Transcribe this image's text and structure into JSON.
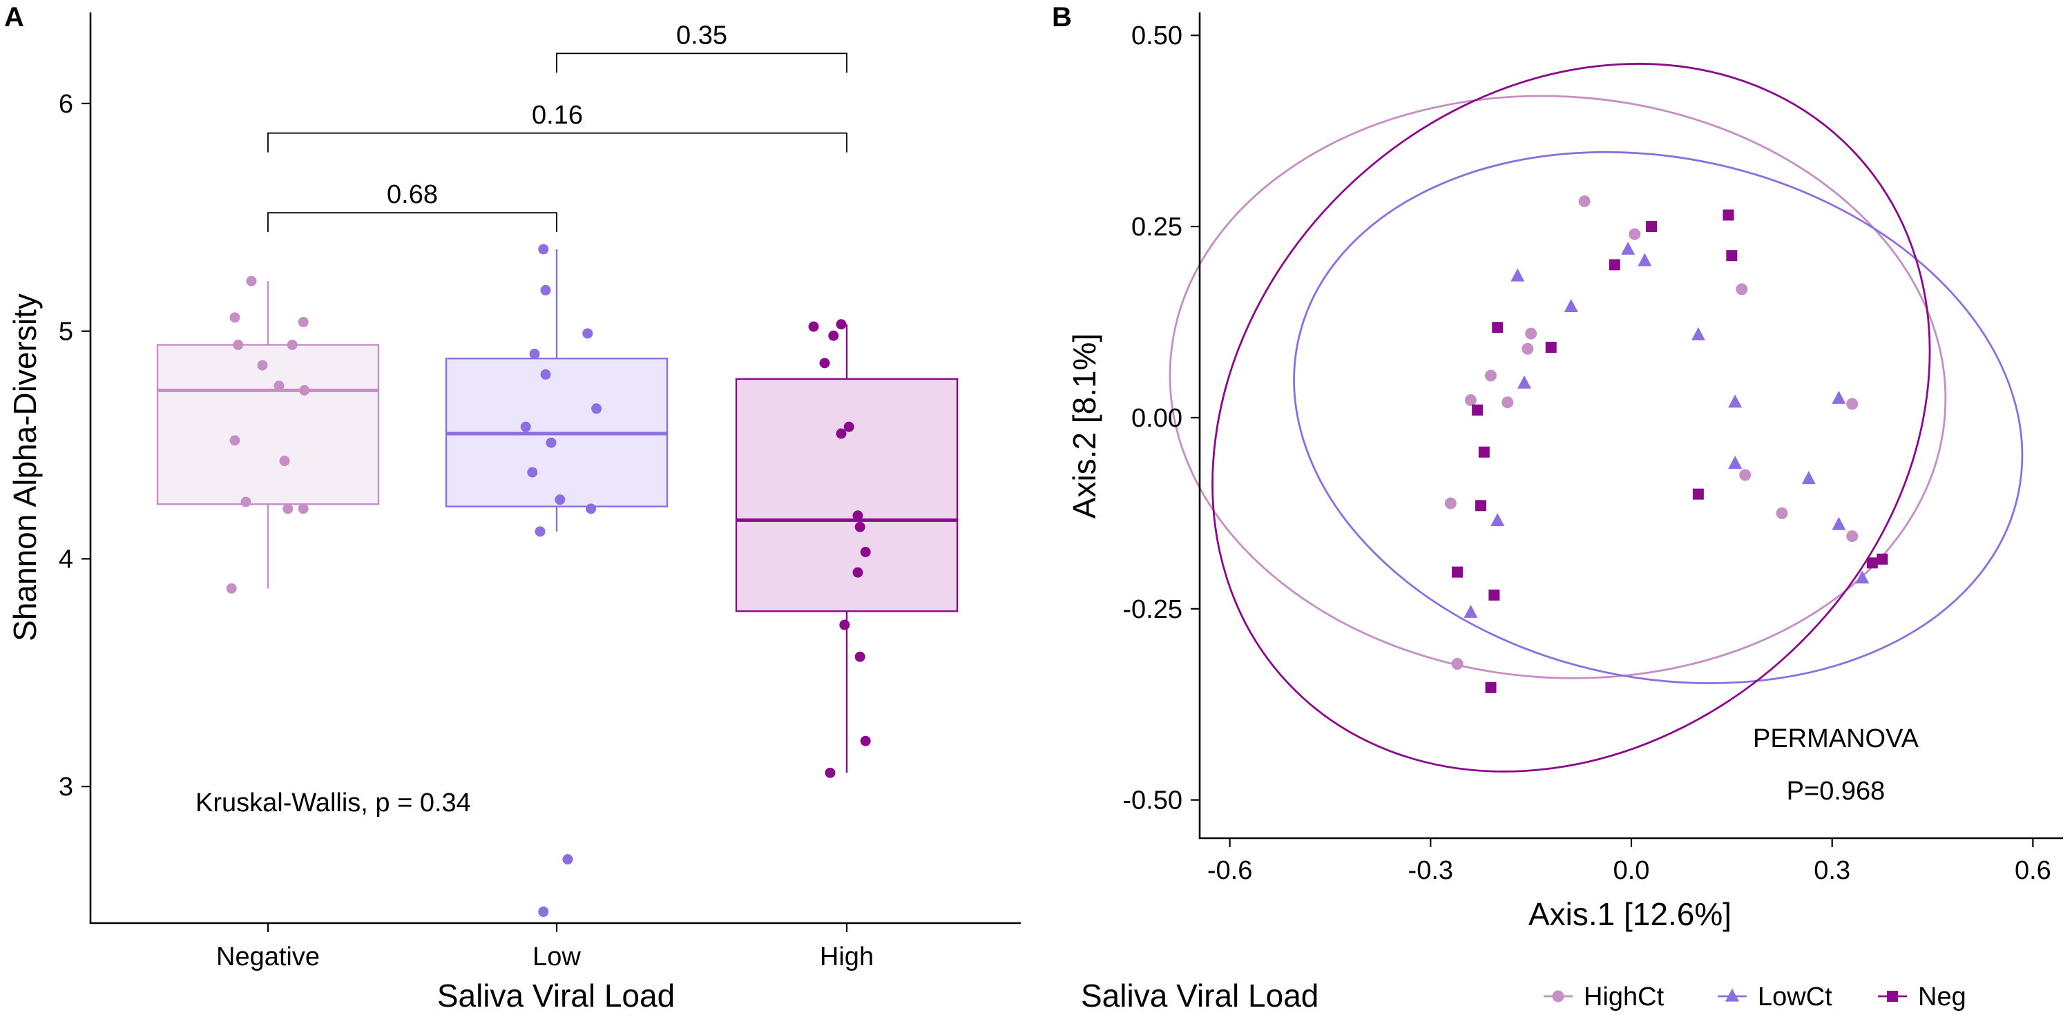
{
  "figure": {
    "panel_a_letter": "A",
    "panel_b_letter": "B"
  },
  "chart_data": [
    {
      "type": "box",
      "panel": "A",
      "xlabel": "Saliva Viral Load",
      "ylabel": "Shannon Alpha-Diversity",
      "ylim": [
        2.4,
        6.4
      ],
      "yticks": [
        3,
        4,
        5,
        6
      ],
      "categories": [
        "Negative",
        "Low",
        "High"
      ],
      "grid": false,
      "series": [
        {
          "category": "Negative",
          "color": "#c58ec5",
          "fill": "#f6eef6",
          "q1": 4.24,
          "median": 4.74,
          "q3": 4.94,
          "whisker_low": 3.87,
          "whisker_high": 5.22,
          "points": [
            {
              "x": -0.15,
              "y": 5.22
            },
            {
              "x": -0.3,
              "y": 5.06
            },
            {
              "x": 0.32,
              "y": 5.04
            },
            {
              "x": -0.27,
              "y": 4.94
            },
            {
              "x": 0.22,
              "y": 4.94
            },
            {
              "x": -0.05,
              "y": 4.85
            },
            {
              "x": 0.1,
              "y": 4.76
            },
            {
              "x": 0.33,
              "y": 4.74
            },
            {
              "x": -0.3,
              "y": 4.52
            },
            {
              "x": 0.15,
              "y": 4.43
            },
            {
              "x": -0.2,
              "y": 4.25
            },
            {
              "x": 0.18,
              "y": 4.22
            },
            {
              "x": 0.32,
              "y": 4.22
            },
            {
              "x": -0.33,
              "y": 3.87
            }
          ]
        },
        {
          "category": "Low",
          "color": "#8c6ee0",
          "fill": "#ebe6fb",
          "q1": 4.23,
          "median": 4.55,
          "q3": 4.88,
          "whisker_low": 4.12,
          "whisker_high": 5.36,
          "points": [
            {
              "x": -0.12,
              "y": 5.36
            },
            {
              "x": -0.1,
              "y": 5.18
            },
            {
              "x": 0.28,
              "y": 4.99
            },
            {
              "x": -0.2,
              "y": 4.9
            },
            {
              "x": -0.1,
              "y": 4.81
            },
            {
              "x": 0.36,
              "y": 4.66
            },
            {
              "x": -0.28,
              "y": 4.58
            },
            {
              "x": -0.05,
              "y": 4.51
            },
            {
              "x": -0.22,
              "y": 4.38
            },
            {
              "x": 0.03,
              "y": 4.26
            },
            {
              "x": 0.31,
              "y": 4.22
            },
            {
              "x": -0.15,
              "y": 4.12
            },
            {
              "x": 0.1,
              "y": 2.68
            },
            {
              "x": -0.12,
              "y": 2.45
            }
          ]
        },
        {
          "category": "High",
          "color": "#8b0a8b",
          "fill": "#eed7ee",
          "q1": 3.77,
          "median": 4.17,
          "q3": 4.79,
          "whisker_low": 3.06,
          "whisker_high": 5.03,
          "points": [
            {
              "x": -0.3,
              "y": 5.02
            },
            {
              "x": -0.05,
              "y": 5.03
            },
            {
              "x": -0.12,
              "y": 4.98
            },
            {
              "x": -0.2,
              "y": 4.86
            },
            {
              "x": 0.02,
              "y": 4.58
            },
            {
              "x": -0.05,
              "y": 4.55
            },
            {
              "x": 0.1,
              "y": 4.19
            },
            {
              "x": 0.12,
              "y": 4.14
            },
            {
              "x": 0.17,
              "y": 4.03
            },
            {
              "x": 0.1,
              "y": 3.94
            },
            {
              "x": -0.02,
              "y": 3.71
            },
            {
              "x": 0.12,
              "y": 3.57
            },
            {
              "x": 0.17,
              "y": 3.2
            },
            {
              "x": -0.15,
              "y": 3.06
            }
          ]
        }
      ],
      "comparisons": [
        {
          "from": "Negative",
          "to": "Low",
          "label": "0.68",
          "y": 5.52
        },
        {
          "from": "Negative",
          "to": "High",
          "label": "0.16",
          "y": 5.87
        },
        {
          "from": "Low",
          "to": "High",
          "label": "0.35",
          "y": 6.22
        }
      ],
      "annotation": "Kruskal-Wallis, p = 0.34"
    },
    {
      "type": "scatter",
      "panel": "B",
      "xlabel": "Axis.1   [12.6%]",
      "ylabel": "Axis.2   [8.1%]",
      "xlim": [
        -0.645,
        0.645
      ],
      "ylim": [
        -0.55,
        0.53
      ],
      "xticks": [
        -0.6,
        -0.3,
        0.0,
        0.3,
        0.6
      ],
      "xtick_labels": [
        "-0.6",
        "-0.3",
        "0.0",
        "0.3",
        "0.6"
      ],
      "yticks": [
        -0.5,
        -0.25,
        0.0,
        0.25,
        0.5
      ],
      "ytick_labels": [
        "-0.50",
        "-0.25",
        "0.00",
        "0.25",
        "0.50"
      ],
      "grid": false,
      "legend": {
        "title": "Saliva Viral Load",
        "position": "bottom",
        "entries": [
          "HighCt",
          "LowCt",
          "Neg"
        ]
      },
      "annotation_lines": [
        "PERMANOVA",
        "P=0.968"
      ],
      "series": [
        {
          "name": "HighCt",
          "marker": "circle",
          "color": "#c58ec5",
          "ellipse": {
            "cx": -0.11,
            "cy": 0.04,
            "rx": 0.58,
            "ry": 0.38,
            "angle_deg": -4
          },
          "points": [
            [
              -0.07,
              0.283
            ],
            [
              0.005,
              0.24
            ],
            [
              0.165,
              0.168
            ],
            [
              -0.21,
              0.055
            ],
            [
              -0.24,
              0.023
            ],
            [
              -0.15,
              0.11
            ],
            [
              -0.155,
              0.09
            ],
            [
              -0.185,
              0.02
            ],
            [
              0.33,
              0.018
            ],
            [
              0.17,
              -0.075
            ],
            [
              -0.27,
              -0.112
            ],
            [
              0.225,
              -0.125
            ],
            [
              0.33,
              -0.155
            ],
            [
              -0.26,
              -0.322
            ]
          ]
        },
        {
          "name": "LowCt",
          "marker": "triangle",
          "color": "#8c6ee0",
          "ellipse": {
            "cx": 0.04,
            "cy": 0.0,
            "rx": 0.55,
            "ry": 0.34,
            "angle_deg": -12
          },
          "points": [
            [
              -0.17,
              0.185
            ],
            [
              -0.09,
              0.145
            ],
            [
              -0.005,
              0.22
            ],
            [
              0.02,
              0.205
            ],
            [
              0.1,
              0.108
            ],
            [
              -0.16,
              0.045
            ],
            [
              0.155,
              0.02
            ],
            [
              0.31,
              0.025
            ],
            [
              0.155,
              -0.06
            ],
            [
              0.265,
              -0.08
            ],
            [
              -0.2,
              -0.135
            ],
            [
              0.31,
              -0.14
            ],
            [
              0.345,
              -0.21
            ],
            [
              -0.24,
              -0.255
            ]
          ]
        },
        {
          "name": "Neg",
          "marker": "square",
          "color": "#8b0a8b",
          "ellipse": {
            "cx": -0.09,
            "cy": 0.0,
            "rx": 0.58,
            "ry": 0.42,
            "angle_deg": 43
          },
          "points": [
            [
              0.145,
              0.265
            ],
            [
              0.03,
              0.25
            ],
            [
              0.15,
              0.212
            ],
            [
              -0.025,
              0.2
            ],
            [
              -0.2,
              0.118
            ],
            [
              -0.12,
              0.092
            ],
            [
              -0.23,
              0.01
            ],
            [
              -0.22,
              -0.045
            ],
            [
              0.1,
              -0.1
            ],
            [
              -0.225,
              -0.115
            ],
            [
              0.375,
              -0.185
            ],
            [
              0.36,
              -0.19
            ],
            [
              -0.26,
              -0.202
            ],
            [
              -0.205,
              -0.232
            ],
            [
              -0.21,
              -0.353
            ]
          ]
        }
      ]
    }
  ]
}
